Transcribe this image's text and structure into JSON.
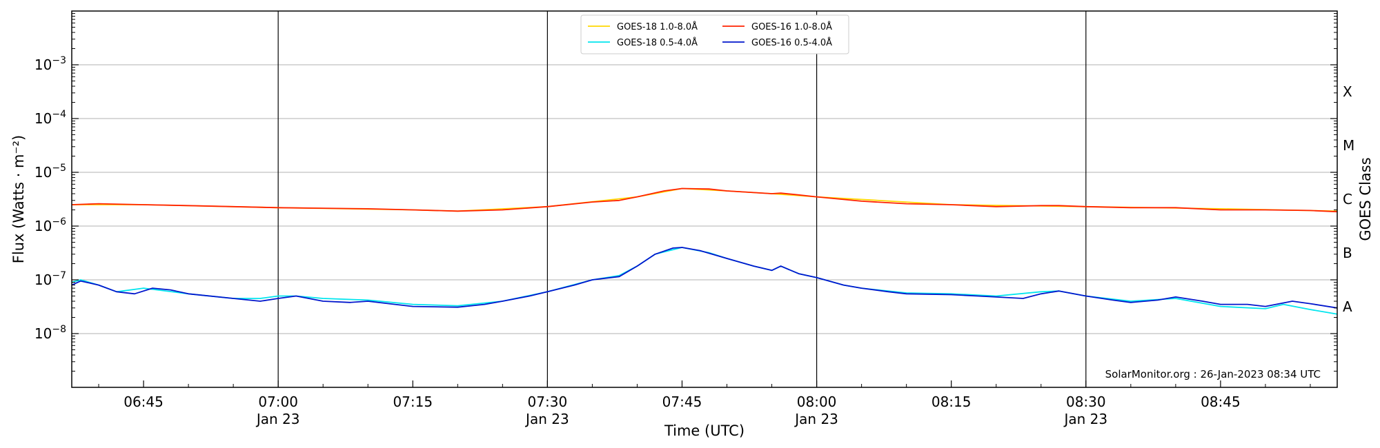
{
  "chart_data": {
    "type": "line",
    "title": "",
    "xlabel": "Time (UTC)",
    "ylabel": "Flux (Watts · m⁻²)",
    "ylabel_right": "GOES Class",
    "yscale": "log",
    "ylim": [
      1e-09,
      0.01
    ],
    "xlim": [
      "06:37",
      "08:58"
    ],
    "grid": "horizontal",
    "legend_position": "top-center",
    "x_ticks": [
      {
        "t": "06:45",
        "label": "06:45",
        "date": ""
      },
      {
        "t": "07:00",
        "label": "07:00",
        "date": "Jan 23"
      },
      {
        "t": "07:15",
        "label": "07:15",
        "date": ""
      },
      {
        "t": "07:30",
        "label": "07:30",
        "date": "Jan 23"
      },
      {
        "t": "07:45",
        "label": "07:45",
        "date": ""
      },
      {
        "t": "08:00",
        "label": "08:00",
        "date": "Jan 23"
      },
      {
        "t": "08:15",
        "label": "08:15",
        "date": ""
      },
      {
        "t": "08:30",
        "label": "08:30",
        "date": "Jan 23"
      },
      {
        "t": "08:45",
        "label": "08:45",
        "date": ""
      }
    ],
    "vertical_lines": [
      "07:00",
      "07:30",
      "08:00",
      "08:30"
    ],
    "y_ticks": [
      {
        "value": 1e-08,
        "label": "10",
        "exp": "−8"
      },
      {
        "value": 1e-07,
        "label": "10",
        "exp": "−7"
      },
      {
        "value": 1e-06,
        "label": "10",
        "exp": "−6"
      },
      {
        "value": 1e-05,
        "label": "10",
        "exp": "−5"
      },
      {
        "value": 0.0001,
        "label": "10",
        "exp": "−4"
      },
      {
        "value": 0.001,
        "label": "10",
        "exp": "−3"
      }
    ],
    "goes_classes": [
      {
        "label": "A",
        "value": 3.16e-08
      },
      {
        "label": "B",
        "value": 3.16e-07
      },
      {
        "label": "C",
        "value": 3.16e-06
      },
      {
        "label": "M",
        "value": 3.16e-05
      },
      {
        "label": "X",
        "value": 0.000316
      }
    ],
    "series": [
      {
        "name": "GOES-18 1.0-8.0Å",
        "color": "#ffd700",
        "legend_col": 0,
        "legend_row": 0,
        "points": [
          [
            "06:37",
            2.5e-06
          ],
          [
            "06:45",
            2.5e-06
          ],
          [
            "07:00",
            2.2e-06
          ],
          [
            "07:15",
            2e-06
          ],
          [
            "07:20",
            1.9e-06
          ],
          [
            "07:30",
            2.3e-06
          ],
          [
            "07:40",
            3.5e-06
          ],
          [
            "07:45",
            5e-06
          ],
          [
            "07:50",
            4.5e-06
          ],
          [
            "07:55",
            4e-06
          ],
          [
            "08:00",
            3.5e-06
          ],
          [
            "08:15",
            2.5e-06
          ],
          [
            "08:30",
            2.3e-06
          ],
          [
            "08:45",
            2.1e-06
          ],
          [
            "08:58",
            1.9e-06
          ]
        ]
      },
      {
        "name": "GOES-18 0.5-4.0Å",
        "color": "#00e5ee",
        "legend_col": 0,
        "legend_row": 1,
        "points": [
          [
            "06:37",
            9e-08
          ],
          [
            "06:38",
            1e-07
          ],
          [
            "06:40",
            8e-08
          ],
          [
            "06:42",
            6e-08
          ],
          [
            "06:45",
            7e-08
          ],
          [
            "06:50",
            5.5e-08
          ],
          [
            "06:55",
            4.5e-08
          ],
          [
            "06:58",
            4.5e-08
          ],
          [
            "07:00",
            5e-08
          ],
          [
            "07:02",
            5e-08
          ],
          [
            "07:05",
            4.5e-08
          ],
          [
            "07:10",
            4.2e-08
          ],
          [
            "07:15",
            3.5e-08
          ],
          [
            "07:20",
            3.3e-08
          ],
          [
            "07:25",
            4e-08
          ],
          [
            "07:30",
            6e-08
          ],
          [
            "07:35",
            1e-07
          ],
          [
            "07:38",
            1.2e-07
          ],
          [
            "07:40",
            1.8e-07
          ],
          [
            "07:42",
            3e-07
          ],
          [
            "07:45",
            4e-07
          ],
          [
            "07:48",
            3.2e-07
          ],
          [
            "07:50",
            2.5e-07
          ],
          [
            "07:53",
            1.8e-07
          ],
          [
            "07:55",
            1.5e-07
          ],
          [
            "07:56",
            1.8e-07
          ],
          [
            "07:58",
            1.3e-07
          ],
          [
            "08:00",
            1.1e-07
          ],
          [
            "08:03",
            8e-08
          ],
          [
            "08:05",
            7e-08
          ],
          [
            "08:10",
            5.7e-08
          ],
          [
            "08:15",
            5.5e-08
          ],
          [
            "08:20",
            5e-08
          ],
          [
            "08:25",
            6e-08
          ],
          [
            "08:27",
            6.2e-08
          ],
          [
            "08:30",
            5e-08
          ],
          [
            "08:35",
            4e-08
          ],
          [
            "08:40",
            4.5e-08
          ],
          [
            "08:45",
            3.2e-08
          ],
          [
            "08:50",
            2.9e-08
          ],
          [
            "08:52",
            3.5e-08
          ],
          [
            "08:55",
            2.8e-08
          ],
          [
            "08:58",
            2.3e-08
          ]
        ]
      },
      {
        "name": "GOES-16 1.0-8.0Å",
        "color": "#ff2200",
        "legend_col": 1,
        "legend_row": 0,
        "points": [
          [
            "06:37",
            2.5e-06
          ],
          [
            "06:40",
            2.6e-06
          ],
          [
            "06:45",
            2.5e-06
          ],
          [
            "06:50",
            2.4e-06
          ],
          [
            "06:55",
            2.3e-06
          ],
          [
            "07:00",
            2.2e-06
          ],
          [
            "07:05",
            2.15e-06
          ],
          [
            "07:10",
            2.1e-06
          ],
          [
            "07:15",
            2e-06
          ],
          [
            "07:20",
            1.9e-06
          ],
          [
            "07:25",
            2e-06
          ],
          [
            "07:30",
            2.3e-06
          ],
          [
            "07:35",
            2.8e-06
          ],
          [
            "07:38",
            3e-06
          ],
          [
            "07:40",
            3.5e-06
          ],
          [
            "07:43",
            4.5e-06
          ],
          [
            "07:45",
            5e-06
          ],
          [
            "07:48",
            4.9e-06
          ],
          [
            "07:50",
            4.5e-06
          ],
          [
            "07:53",
            4.2e-06
          ],
          [
            "07:55",
            4e-06
          ],
          [
            "07:56",
            4.1e-06
          ],
          [
            "07:58",
            3.8e-06
          ],
          [
            "08:00",
            3.5e-06
          ],
          [
            "08:05",
            2.9e-06
          ],
          [
            "08:10",
            2.6e-06
          ],
          [
            "08:15",
            2.5e-06
          ],
          [
            "08:20",
            2.3e-06
          ],
          [
            "08:25",
            2.4e-06
          ],
          [
            "08:27",
            2.4e-06
          ],
          [
            "08:30",
            2.3e-06
          ],
          [
            "08:35",
            2.2e-06
          ],
          [
            "08:40",
            2.2e-06
          ],
          [
            "08:45",
            2e-06
          ],
          [
            "08:50",
            2e-06
          ],
          [
            "08:55",
            1.95e-06
          ],
          [
            "08:58",
            1.85e-06
          ]
        ]
      },
      {
        "name": "GOES-16 0.5-4.0Å",
        "color": "#0015cc",
        "legend_col": 1,
        "legend_row": 1,
        "points": [
          [
            "06:37",
            8e-08
          ],
          [
            "06:38",
            9.5e-08
          ],
          [
            "06:40",
            8e-08
          ],
          [
            "06:42",
            6e-08
          ],
          [
            "06:44",
            5.5e-08
          ],
          [
            "06:46",
            7e-08
          ],
          [
            "06:48",
            6.5e-08
          ],
          [
            "06:50",
            5.5e-08
          ],
          [
            "06:55",
            4.5e-08
          ],
          [
            "06:58",
            4e-08
          ],
          [
            "07:00",
            4.5e-08
          ],
          [
            "07:02",
            5e-08
          ],
          [
            "07:05",
            4e-08
          ],
          [
            "07:08",
            3.8e-08
          ],
          [
            "07:10",
            4e-08
          ],
          [
            "07:13",
            3.5e-08
          ],
          [
            "07:15",
            3.2e-08
          ],
          [
            "07:20",
            3.1e-08
          ],
          [
            "07:23",
            3.5e-08
          ],
          [
            "07:25",
            4e-08
          ],
          [
            "07:28",
            5e-08
          ],
          [
            "07:30",
            6e-08
          ],
          [
            "07:33",
            8e-08
          ],
          [
            "07:35",
            1e-07
          ],
          [
            "07:38",
            1.15e-07
          ],
          [
            "07:40",
            1.8e-07
          ],
          [
            "07:42",
            3e-07
          ],
          [
            "07:44",
            3.9e-07
          ],
          [
            "07:45",
            4e-07
          ],
          [
            "07:47",
            3.5e-07
          ],
          [
            "07:50",
            2.5e-07
          ],
          [
            "07:53",
            1.8e-07
          ],
          [
            "07:55",
            1.5e-07
          ],
          [
            "07:56",
            1.8e-07
          ],
          [
            "07:58",
            1.3e-07
          ],
          [
            "08:00",
            1.1e-07
          ],
          [
            "08:03",
            8e-08
          ],
          [
            "08:05",
            7e-08
          ],
          [
            "08:08",
            6e-08
          ],
          [
            "08:10",
            5.5e-08
          ],
          [
            "08:15",
            5.3e-08
          ],
          [
            "08:18",
            5e-08
          ],
          [
            "08:20",
            4.8e-08
          ],
          [
            "08:23",
            4.5e-08
          ],
          [
            "08:25",
            5.5e-08
          ],
          [
            "08:27",
            6.2e-08
          ],
          [
            "08:30",
            5e-08
          ],
          [
            "08:33",
            4.2e-08
          ],
          [
            "08:35",
            3.8e-08
          ],
          [
            "08:38",
            4.2e-08
          ],
          [
            "08:40",
            4.8e-08
          ],
          [
            "08:43",
            4e-08
          ],
          [
            "08:45",
            3.5e-08
          ],
          [
            "08:48",
            3.5e-08
          ],
          [
            "08:50",
            3.2e-08
          ],
          [
            "08:53",
            4e-08
          ],
          [
            "08:55",
            3.6e-08
          ],
          [
            "08:58",
            3e-08
          ]
        ]
      }
    ]
  },
  "credit": "SolarMonitor.org : 26-Jan-2023 08:34 UTC"
}
